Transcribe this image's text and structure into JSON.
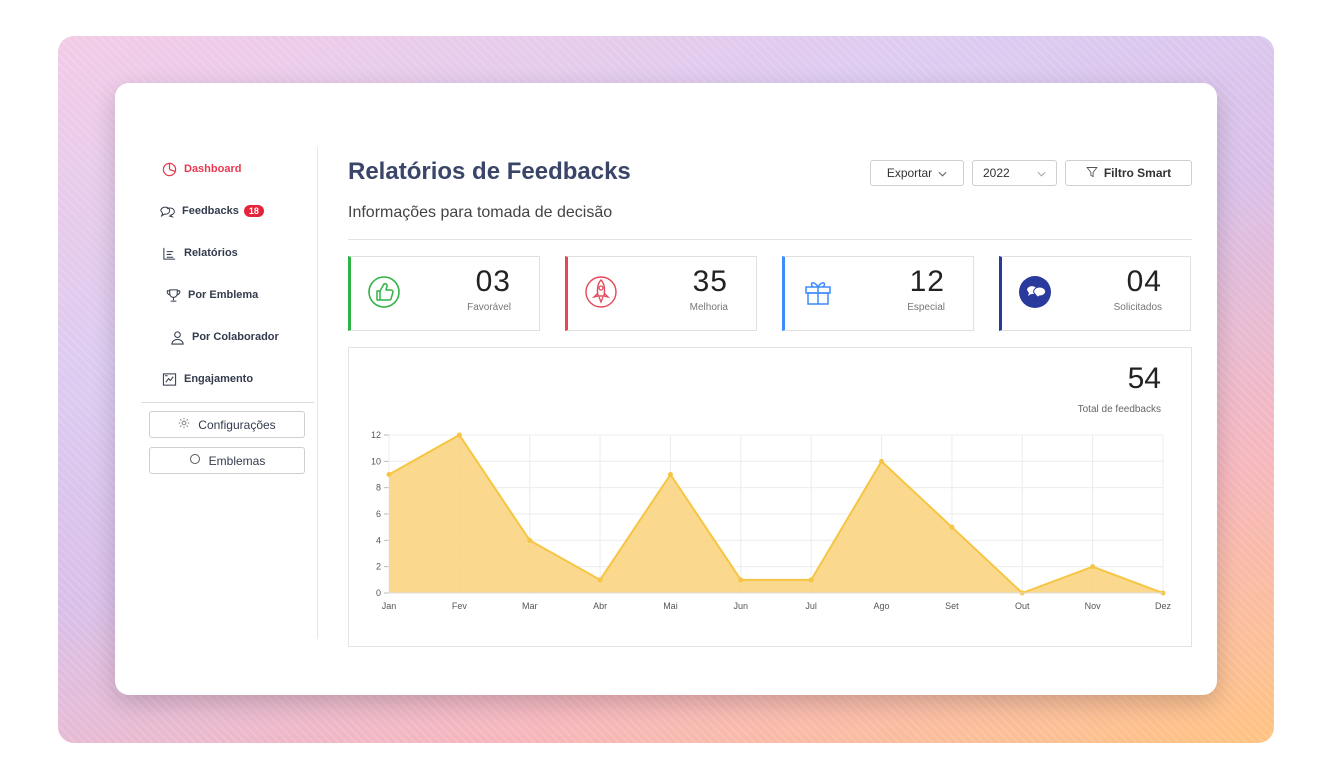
{
  "sidebar": {
    "items": [
      {
        "label": "Dashboard",
        "icon": "pie-chart-icon",
        "active": true
      },
      {
        "label": "Feedbacks",
        "icon": "chat-bubbles-icon",
        "badge": "18"
      },
      {
        "label": "Relatórios",
        "icon": "report-list-icon"
      },
      {
        "label": "Por Emblema",
        "icon": "trophy-icon"
      },
      {
        "label": "Por Colaborador",
        "icon": "user-icon"
      },
      {
        "label": "Engajamento",
        "icon": "engagement-icon"
      }
    ],
    "buttons": [
      {
        "label": "Configurações",
        "icon": "gear-icon"
      },
      {
        "label": "Emblemas",
        "icon": "circle-icon"
      }
    ]
  },
  "header": {
    "title": "Relatórios de Feedbacks",
    "subtitle": "Informações para tomada de decisão",
    "export_label": "Exportar",
    "year_value": "2022",
    "filter_label": "Filtro Smart"
  },
  "stats": [
    {
      "value": "03",
      "label": "Favorável",
      "color": "#2fb344",
      "icon": "thumbs-up-icon"
    },
    {
      "value": "35",
      "label": "Melhoria",
      "color": "#e5475a",
      "icon": "rocket-icon"
    },
    {
      "value": "12",
      "label": "Especial",
      "color": "#3d8bfd",
      "icon": "gift-icon"
    },
    {
      "value": "04",
      "label": "Solicitados",
      "color": "#2a3a9c",
      "icon": "chat-request-icon"
    }
  ],
  "total": {
    "value": "54",
    "label": "Total de feedbacks"
  },
  "chart_data": {
    "type": "area",
    "x": [
      "Jan",
      "Fev",
      "Mar",
      "Abr",
      "Mai",
      "Jun",
      "Jul",
      "Ago",
      "Set",
      "Out",
      "Nov",
      "Dez"
    ],
    "values": [
      9,
      12,
      4,
      1,
      9,
      1,
      1,
      10,
      5,
      0,
      2,
      0
    ],
    "ylim": [
      0,
      12
    ],
    "yticks": [
      0,
      2,
      4,
      6,
      8,
      10,
      12
    ],
    "grid": true,
    "colors": {
      "line": "#f6c543",
      "fill": "#f9d27a"
    }
  }
}
